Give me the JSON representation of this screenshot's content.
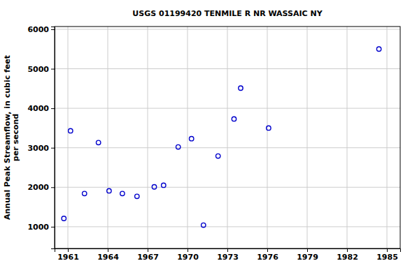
{
  "chart_data": {
    "type": "scatter",
    "title": "USGS 01199420 TENMILE R NR WASSAIC NY",
    "y_label": [
      "Annual Peak Streamflow, in cubic feet",
      "per second"
    ],
    "x": [
      1960.7,
      1961.2,
      1962.25,
      1963.3,
      1964.1,
      1965.1,
      1966.2,
      1967.5,
      1968.2,
      1969.3,
      1970.3,
      1971.2,
      1972.3,
      1973.5,
      1974.0,
      1976.1,
      1984.4
    ],
    "values": [
      1210,
      3430,
      1840,
      3130,
      1910,
      1840,
      1770,
      2010,
      2050,
      3020,
      3230,
      1040,
      2790,
      3730,
      4510,
      3500,
      5500
    ],
    "color": "#0000cc",
    "marker": "circle-open",
    "xlim": [
      1960,
      1986
    ],
    "xticks": [
      1961,
      1964,
      1967,
      1970,
      1973,
      1976,
      1979,
      1982,
      1985
    ],
    "ylim": [
      450,
      6070
    ],
    "yticks": [
      1000,
      2000,
      3000,
      4000,
      5000,
      6000
    ],
    "grid": true
  }
}
